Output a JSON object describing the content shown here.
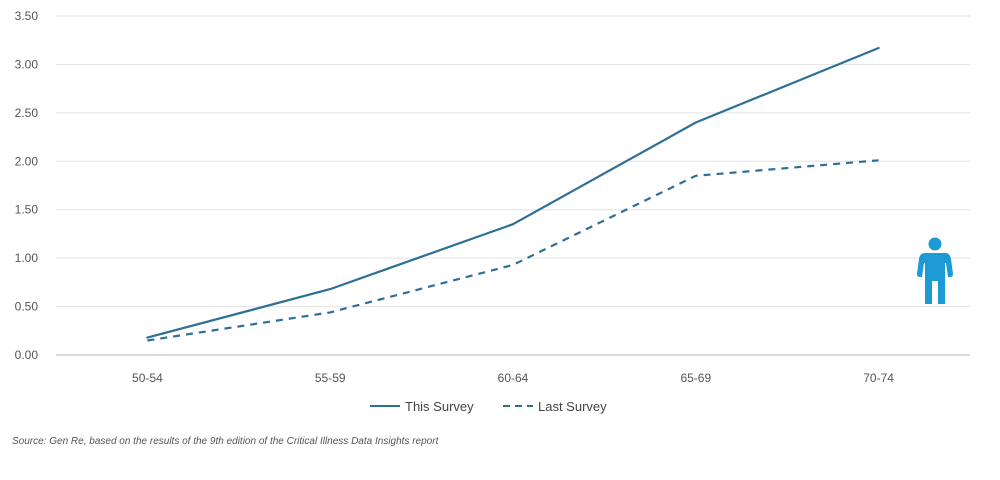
{
  "chart_data": {
    "type": "line",
    "categories": [
      "50-54",
      "55-59",
      "60-64",
      "65-69",
      "70-74"
    ],
    "series": [
      {
        "name": "This Survey",
        "values": [
          0.18,
          0.68,
          1.35,
          2.4,
          3.17
        ],
        "style": "solid"
      },
      {
        "name": "Last Survey",
        "values": [
          0.15,
          0.44,
          0.93,
          1.85,
          2.01
        ],
        "style": "dashed"
      }
    ],
    "y_ticks": [
      "0.00",
      "0.50",
      "1.00",
      "1.50",
      "2.00",
      "2.50",
      "3.00",
      "3.50"
    ],
    "ylim": [
      0,
      3.5
    ],
    "grid": true,
    "legend_position": "bottom",
    "colors": {
      "line": "#2e6f96",
      "icon": "#1b9ad6",
      "grid": "#e3e3e3",
      "axis": "#b8b8b8"
    }
  },
  "icon": {
    "name": "person-icon"
  },
  "source": "Source: Gen Re, based on the results of the 9th edition of the Critical Illness Data Insights report"
}
